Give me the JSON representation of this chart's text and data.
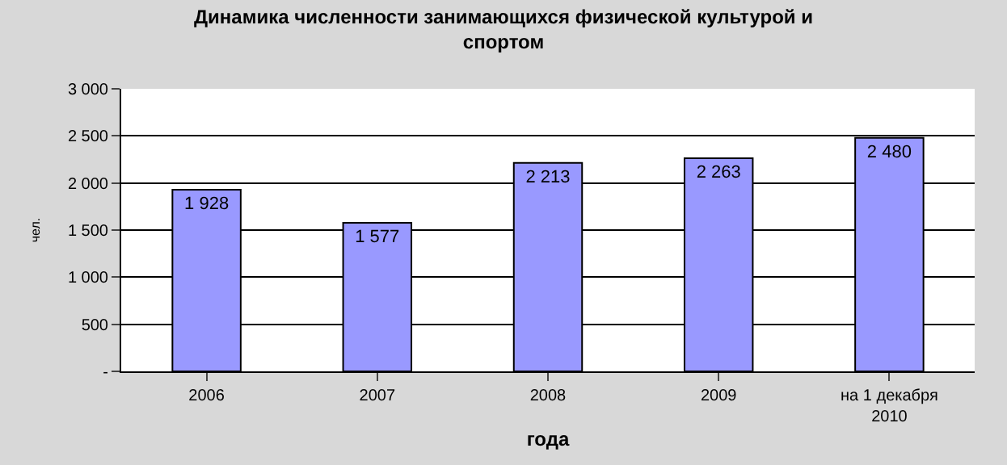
{
  "chart_data": {
    "type": "bar",
    "title": "Динамика численности занимающихся физической культурой и\nспортом",
    "xlabel": "года",
    "ylabel": "чел.",
    "categories": [
      "2006",
      "2007",
      "2008",
      "2009",
      "на 1 декабря\n2010"
    ],
    "values": [
      1928,
      1577,
      2213,
      2263,
      2480
    ],
    "value_labels": [
      "1 928",
      "1 577",
      "2 213",
      "2 263",
      "2 480"
    ],
    "color": "#9999ff",
    "ylim": [
      0,
      3000
    ],
    "yticks": [
      {
        "value": 0,
        "label": "-"
      },
      {
        "value": 500,
        "label": "500"
      },
      {
        "value": 1000,
        "label": "1 000"
      },
      {
        "value": 1500,
        "label": "1 500"
      },
      {
        "value": 2000,
        "label": "2 000"
      },
      {
        "value": 2500,
        "label": "2 500"
      },
      {
        "value": 3000,
        "label": "3 000"
      }
    ],
    "grid": "y"
  }
}
